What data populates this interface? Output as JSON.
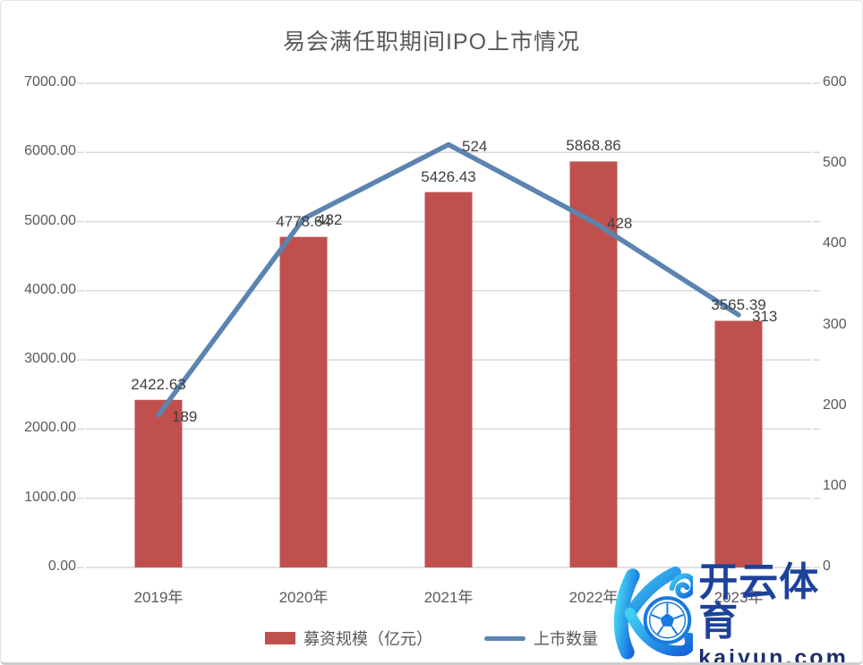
{
  "chart": {
    "title": "易会满任职期间IPO上市情况"
  },
  "chart_data": {
    "type": "combo-bar-line",
    "title": "易会满任职期间IPO上市情况",
    "categories": [
      "2019年",
      "2020年",
      "2021年",
      "2022年",
      "2023年"
    ],
    "series": [
      {
        "name": "募资规模（亿元）",
        "type": "bar",
        "axis": "left",
        "color": "#c0504d",
        "values": [
          2422.63,
          4778.64,
          5426.43,
          5868.86,
          3565.39
        ],
        "labels": [
          "2422.63",
          "4778.64",
          "5426.43",
          "5868.86",
          "3565.39"
        ]
      },
      {
        "name": "上市数量",
        "type": "line",
        "axis": "right",
        "color": "#5b84b1",
        "values": [
          189,
          432,
          524,
          428,
          313
        ],
        "labels": [
          "189",
          "432",
          "524",
          "428",
          "313"
        ]
      }
    ],
    "left_axis": {
      "min": 0,
      "max": 7000,
      "step": 1000,
      "tick_labels": [
        "0.00",
        "1000.00",
        "2000.00",
        "3000.00",
        "4000.00",
        "5000.00",
        "6000.00",
        "7000.00"
      ]
    },
    "right_axis": {
      "min": 0,
      "max": 600,
      "step": 100,
      "tick_labels": [
        "0",
        "100",
        "200",
        "300",
        "400",
        "500",
        "600"
      ]
    },
    "grid": true,
    "legend_position": "bottom"
  },
  "colors": {
    "bar": "#c0504d",
    "line": "#5b84b1",
    "grid": "#d9d9d9",
    "axis_text": "#595959",
    "label_text": "#3f3f3f",
    "title_text": "#595959",
    "watermark_brand": "#1d429c",
    "watermark_domain": "#1d2f6e"
  },
  "watermark": {
    "brand_cn": "开云体育",
    "domain": "kaiyun.com"
  }
}
